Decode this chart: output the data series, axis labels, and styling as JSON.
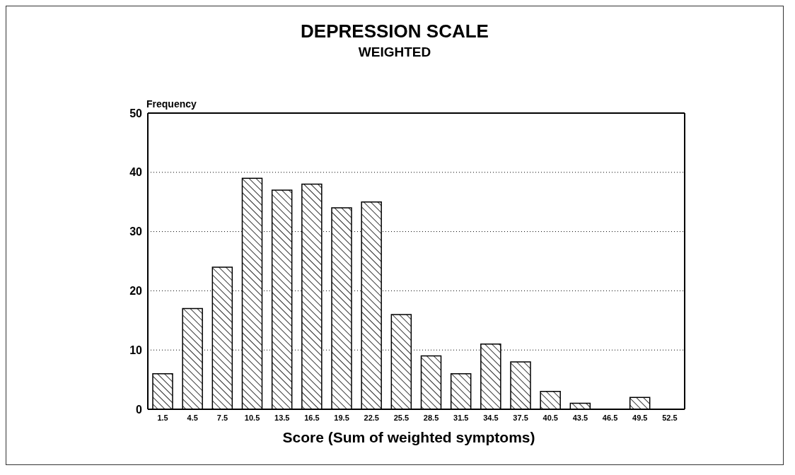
{
  "chart_data": {
    "type": "bar",
    "title": "DEPRESSION SCALE",
    "subtitle": "WEIGHTED",
    "ylabel": "Frequency",
    "xlabel": "Score (Sum of weighted symptoms)",
    "categories": [
      "1.5",
      "4.5",
      "7.5",
      "10.5",
      "13.5",
      "16.5",
      "19.5",
      "22.5",
      "25.5",
      "28.5",
      "31.5",
      "34.5",
      "37.5",
      "40.5",
      "43.5",
      "46.5",
      "49.5",
      "52.5"
    ],
    "values": [
      6,
      17,
      24,
      39,
      37,
      38,
      34,
      35,
      16,
      9,
      6,
      11,
      8,
      3,
      1,
      0,
      2,
      0
    ],
    "color": "#000000",
    "ylim": [
      0,
      50
    ],
    "yticks": [
      0,
      10,
      20,
      30,
      40,
      50
    ],
    "grid": "y"
  }
}
